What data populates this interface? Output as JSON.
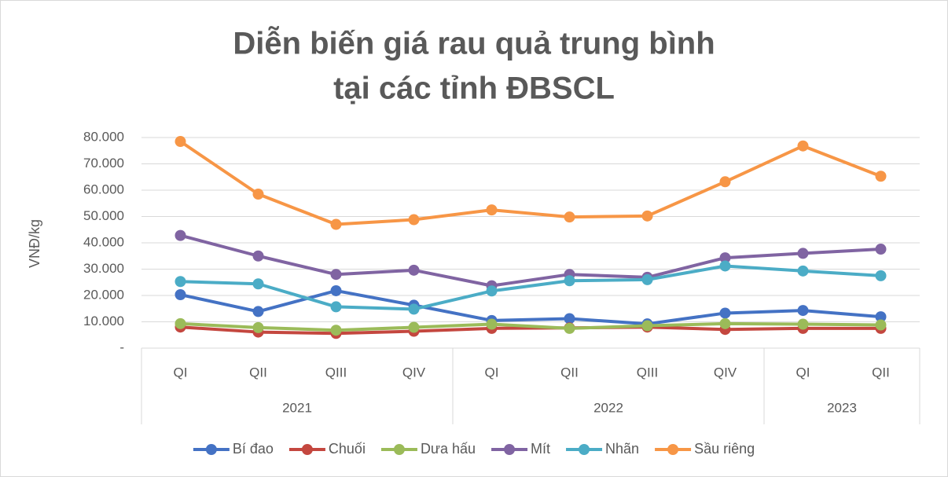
{
  "chart_data": {
    "type": "line",
    "title": [
      "Diễn biến giá rau quả trung bình",
      "tại các tỉnh ĐBSCL"
    ],
    "y_label": "VNĐ/kg",
    "groups": [
      {
        "name": "2021",
        "categories": [
          "QI",
          "QII",
          "QIII",
          "QIV"
        ]
      },
      {
        "name": "2022",
        "categories": [
          "QI",
          "QII",
          "QIII",
          "QIV"
        ]
      },
      {
        "name": "2023",
        "categories": [
          "QI",
          "QII"
        ]
      }
    ],
    "ylim": [
      0,
      80000
    ],
    "yticks": [
      {
        "value": 0,
        "label": "-"
      },
      {
        "value": 10000,
        "label": "10.000"
      },
      {
        "value": 20000,
        "label": "20.000"
      },
      {
        "value": 30000,
        "label": "30.000"
      },
      {
        "value": 40000,
        "label": "40.000"
      },
      {
        "value": 50000,
        "label": "50.000"
      },
      {
        "value": 60000,
        "label": "60.000"
      },
      {
        "value": 70000,
        "label": "70.000"
      },
      {
        "value": 80000,
        "label": "80.000"
      }
    ],
    "grid": true,
    "legend": "bottom",
    "series": [
      {
        "name": "Bí đao",
        "color": "#4472c4",
        "values": [
          20300,
          13900,
          21800,
          16300,
          10500,
          11200,
          9200,
          13300,
          14300,
          11900
        ]
      },
      {
        "name": "Chuối",
        "color": "#c4473f",
        "values": [
          8000,
          6100,
          5600,
          6400,
          7500,
          7700,
          8000,
          7100,
          7500,
          7500
        ]
      },
      {
        "name": "Dưa hấu",
        "color": "#9bbb59",
        "values": [
          9300,
          7800,
          6800,
          7900,
          9100,
          7500,
          8500,
          9300,
          9100,
          8800
        ]
      },
      {
        "name": "Mít",
        "color": "#8064a2",
        "values": [
          42800,
          35000,
          28000,
          29600,
          23700,
          28000,
          26900,
          34300,
          36000,
          37600
        ]
      },
      {
        "name": "Nhãn",
        "color": "#4bacc6",
        "values": [
          25300,
          24400,
          15700,
          14800,
          21700,
          25600,
          26000,
          31200,
          29300,
          27500
        ]
      },
      {
        "name": "Sầu riêng",
        "color": "#f79646",
        "values": [
          78500,
          58500,
          47000,
          48800,
          52500,
          49800,
          50200,
          63200,
          76800,
          65300
        ]
      }
    ]
  }
}
